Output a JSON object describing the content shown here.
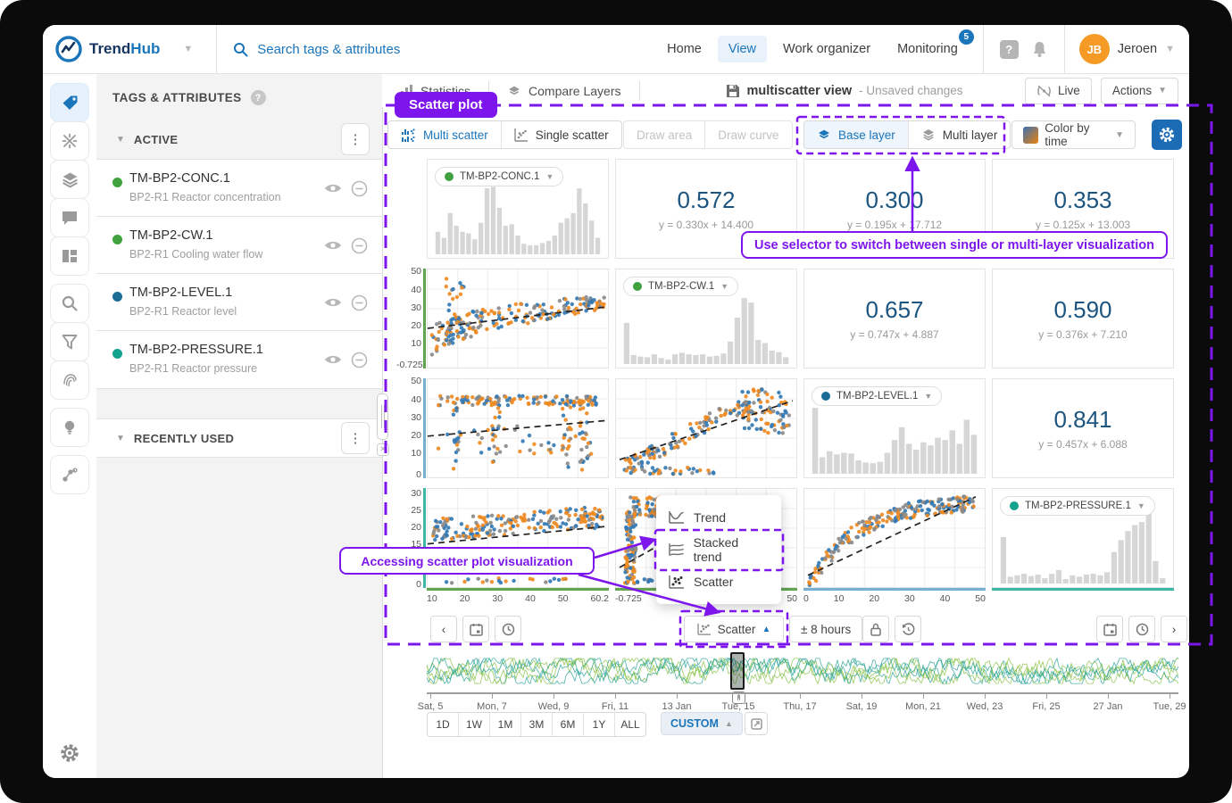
{
  "colors": {
    "accent_blue": "#1b75bb",
    "corr_navy": "#1c5480",
    "purple": "#7d16ed",
    "pt_blue": "#3379b5",
    "pt_orange": "#ee8a22",
    "pt_grey": "#8a8a8a",
    "bar_grey": "#d6d6d6",
    "axis_green": "#61a551",
    "axis_blue": "#77aed1",
    "axis_teal": "#3db6a5",
    "wave_green": "#8bc34a",
    "wave_teal": "#2fa69b",
    "avatar_orange": "#f59b25",
    "swatch_gradient_from": "#3b6fb3",
    "swatch_gradient_to": "#e8830d"
  },
  "topnav": {
    "brand_trend": "Trend",
    "brand_hub": "Hub",
    "search_placeholder": "Search tags & attributes",
    "home": "Home",
    "view": "View",
    "work_organizer": "Work organizer",
    "monitoring": "Monitoring",
    "monitoring_badge": "5",
    "user_initials": "JB",
    "user_name": "Jeroen"
  },
  "tags_panel": {
    "title": "TAGS & ATTRIBUTES",
    "active_label": "ACTIVE",
    "recent_label": "RECENTLY USED",
    "items": [
      {
        "name": "TM-BP2-CONC.1",
        "desc": "BP2-R1 Reactor concentration",
        "color": "#3fa23f"
      },
      {
        "name": "TM-BP2-CW.1",
        "desc": "BP2-R1 Cooling water flow",
        "color": "#3fa23f"
      },
      {
        "name": "TM-BP2-LEVEL.1",
        "desc": "BP2-R1 Reactor level",
        "color": "#1b6d95"
      },
      {
        "name": "TM-BP2-PRESSURE.1",
        "desc": "BP2-R1 Reactor pressure",
        "color": "#12a28d"
      }
    ]
  },
  "view_header": {
    "tab_statistics": "Statistics",
    "tab_compare": "Compare Layers",
    "doc_title": "multiscatter view",
    "doc_status": "- Unsaved changes",
    "live": "Live",
    "actions": "Actions"
  },
  "toolbar": {
    "multi_scatter": "Multi scatter",
    "single_scatter": "Single scatter",
    "draw_area": "Draw area",
    "draw_curve": "Draw curve",
    "base_layer": "Base layer",
    "multi_layer": "Multi layer",
    "color_by_time": "Color by time"
  },
  "annotations": {
    "badge": "Scatter plot",
    "selector_note": "Use selector to switch between single or multi-layer visualization",
    "access_note": "Accessing scatter plot visualization"
  },
  "menu": {
    "trend": "Trend",
    "stacked": "Stacked trend",
    "scatter": "Scatter"
  },
  "bottom_toolbar": {
    "scatter": "Scatter",
    "window": "± 8 hours"
  },
  "timeline": {
    "labels": [
      "Sat, 5",
      "Mon, 7",
      "Wed, 9",
      "Fri, 11",
      "13 Jan",
      "Tue, 15",
      "Thu, 17",
      "Sat, 19",
      "Mon, 21",
      "Wed, 23",
      "Fri, 25",
      "27 Jan",
      "Tue, 29"
    ],
    "ranges": [
      "1D",
      "1W",
      "1M",
      "3M",
      "6M",
      "1Y",
      "ALL"
    ],
    "custom": "CUSTOM"
  },
  "matrix": {
    "chips": {
      "conc": "TM-BP2-CONC.1",
      "cw": "TM-BP2-CW.1",
      "level": "TM-BP2-LEVEL.1",
      "pressure": "TM-BP2-PRESSURE.1"
    },
    "corr": {
      "r1c2": {
        "value": "0.572",
        "eq": "y = 0.330x + 14.400"
      },
      "r1c3": {
        "value": "0.300",
        "eq": "y = 0.195x + 17.712"
      },
      "r1c4": {
        "value": "0.353",
        "eq": "y = 0.125x + 13.003"
      },
      "r2c3": {
        "value": "0.657",
        "eq": "y = 0.747x + 4.887"
      },
      "r2c4": {
        "value": "0.590",
        "eq": "y = 0.376x + 7.210"
      },
      "r3c4": {
        "value": "0.841",
        "eq": "y = 0.457x + 6.088"
      }
    },
    "y_ticks": {
      "row2": [
        "50",
        "40",
        "30",
        "20",
        "10",
        "-0.725"
      ],
      "row3": [
        "50",
        "40",
        "30",
        "20",
        "10",
        "0"
      ],
      "row4": [
        "30",
        "25",
        "20",
        "15",
        "0"
      ]
    },
    "x_ticks": {
      "col1": [
        "10",
        "20",
        "30",
        "40",
        "50",
        "60.2"
      ],
      "col2": [
        "-0.725",
        "10",
        "20",
        "30",
        "40",
        "50"
      ],
      "col3": [
        "0",
        "10",
        "20",
        "30",
        "40",
        "50"
      ],
      "col4": []
    }
  },
  "chart_data": [
    {
      "type": "bar",
      "title": "TM-BP2-CONC.1 histogram",
      "values": [
        30,
        22,
        55,
        38,
        30,
        28,
        20,
        42,
        88,
        90,
        62,
        38,
        40,
        25,
        14,
        12,
        12,
        15,
        18,
        25,
        42,
        48,
        55,
        88,
        68,
        45,
        22
      ]
    },
    {
      "type": "bar",
      "title": "TM-BP2-CW.1 histogram",
      "values": [
        55,
        12,
        10,
        9,
        13,
        8,
        6,
        13,
        15,
        13,
        12,
        13,
        10,
        11,
        14,
        30,
        62,
        88,
        82,
        32,
        28,
        18,
        16,
        9
      ]
    },
    {
      "type": "bar",
      "title": "TM-BP2-LEVEL.1 histogram",
      "values": [
        88,
        22,
        30,
        26,
        28,
        27,
        18,
        15,
        14,
        16,
        28,
        45,
        62,
        40,
        32,
        42,
        38,
        48,
        45,
        58,
        40,
        72,
        52
      ]
    },
    {
      "type": "bar",
      "title": "TM-BP2-PRESSURE.1 histogram",
      "values": [
        62,
        9,
        11,
        13,
        10,
        12,
        7,
        13,
        18,
        6,
        11,
        9,
        12,
        13,
        11,
        15,
        42,
        58,
        70,
        78,
        82,
        95,
        30,
        7
      ]
    },
    {
      "type": "table",
      "title": "Correlation cells (upper triangle)",
      "columns": [
        "pair",
        "r",
        "fit"
      ],
      "rows": [
        [
          "TM-BP2-CONC.1 / TM-BP2-CW.1",
          "0.572",
          "y = 0.330x + 14.400"
        ],
        [
          "TM-BP2-CONC.1 / TM-BP2-LEVEL.1",
          "0.300",
          "y = 0.195x + 17.712"
        ],
        [
          "TM-BP2-CONC.1 / TM-BP2-PRESSURE.1",
          "0.353",
          "y = 0.125x + 13.003"
        ],
        [
          "TM-BP2-CW.1 / TM-BP2-LEVEL.1",
          "0.657",
          "y = 0.747x + 4.887"
        ],
        [
          "TM-BP2-CW.1 / TM-BP2-PRESSURE.1",
          "0.590",
          "y = 0.376x + 7.210"
        ],
        [
          "TM-BP2-LEVEL.1 / TM-BP2-PRESSURE.1",
          "0.841",
          "y = 0.457x + 6.088"
        ]
      ]
    },
    {
      "type": "scatter",
      "title": "Lower-triangle scatter cells (3 colored layers with dashed fit lines)",
      "series": [
        {
          "name": "layer-blue"
        },
        {
          "name": "layer-orange"
        },
        {
          "name": "layer-grey"
        }
      ],
      "x_axis_ranges": {
        "col1": [
          10,
          60.2
        ],
        "col2": [
          -0.725,
          50
        ],
        "col3": [
          0,
          50
        ]
      },
      "y_axis_ranges": {
        "row2": [
          -0.725,
          50
        ],
        "row3": [
          0,
          50
        ],
        "row4": [
          0,
          30
        ]
      }
    }
  ]
}
